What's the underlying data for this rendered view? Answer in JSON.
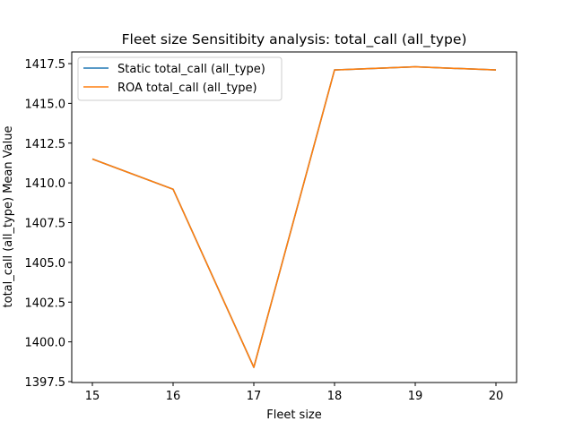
{
  "chart_data": {
    "type": "line",
    "title": "Fleet size Sensitibity analysis: total_call (all_type)",
    "xlabel": "Fleet size",
    "ylabel": "total_call (all_type) Mean Value",
    "x": [
      15,
      16,
      17,
      18,
      19,
      20
    ],
    "xticks": [
      "15",
      "16",
      "17",
      "18",
      "19",
      "20"
    ],
    "yticks": [
      "1397.5",
      "1400.0",
      "1402.5",
      "1405.0",
      "1407.5",
      "1410.0",
      "1412.5",
      "1415.0",
      "1417.5"
    ],
    "ylim": [
      1397.5,
      1417.5
    ],
    "xlim": [
      15,
      20
    ],
    "legend_position": "upper-left",
    "grid": false,
    "series": [
      {
        "name": "Static total_call (all_type)",
        "color": "#1f77b4",
        "values": [
          1411.5,
          1409.6,
          1398.4,
          1417.1,
          1417.3,
          1417.1
        ]
      },
      {
        "name": "ROA total_call (all_type)",
        "color": "#ff7f0e",
        "values": [
          1411.5,
          1409.6,
          1398.4,
          1417.1,
          1417.3,
          1417.1
        ]
      }
    ]
  }
}
